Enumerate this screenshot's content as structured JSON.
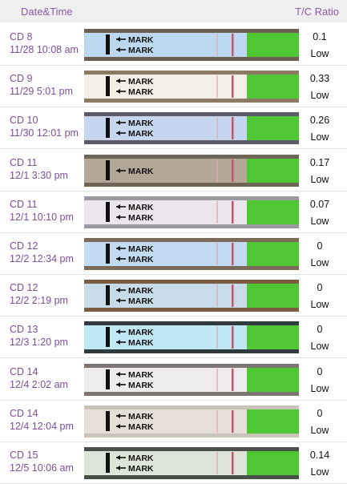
{
  "header": {
    "date_label": "Date&Time",
    "ratio_label": "T/C Ratio"
  },
  "rows": [
    {
      "cd": "CD 8",
      "datetime": "11/28 10:08 am",
      "strip_labels": [
        "MARK",
        "MARK"
      ],
      "ratio": "0.1",
      "level": "Low"
    },
    {
      "cd": "CD 9",
      "datetime": "11/29 5:01 pm",
      "strip_labels": [
        "MARK",
        "MARK"
      ],
      "ratio": "0.33",
      "level": "Low"
    },
    {
      "cd": "CD 10",
      "datetime": "11/30 12:01 pm",
      "strip_labels": [
        "MARK",
        "MARK"
      ],
      "ratio": "0.26",
      "level": "Low"
    },
    {
      "cd": "CD 11",
      "datetime": "12/1 3:30 pm",
      "strip_labels": [
        "MARK"
      ],
      "ratio": "0.17",
      "level": "Low"
    },
    {
      "cd": "CD 11",
      "datetime": "12/1 10:10 pm",
      "strip_labels": [
        "MARK",
        "MARK"
      ],
      "ratio": "0.07",
      "level": "Low"
    },
    {
      "cd": "CD 12",
      "datetime": "12/2 12:34 pm",
      "strip_labels": [
        "MARK",
        "MARK"
      ],
      "ratio": "0",
      "level": "Low"
    },
    {
      "cd": "CD 12",
      "datetime": "12/2 2:19 pm",
      "strip_labels": [
        "MARK",
        "MARK"
      ],
      "ratio": "0",
      "level": "Low"
    },
    {
      "cd": "CD 13",
      "datetime": "12/3 1:20 pm",
      "strip_labels": [
        "MARK",
        "MARK"
      ],
      "ratio": "0",
      "level": "Low"
    },
    {
      "cd": "CD 14",
      "datetime": "12/4 2:02 am",
      "strip_labels": [
        "MARK",
        "MARK"
      ],
      "ratio": "0",
      "level": "Low"
    },
    {
      "cd": "CD 14",
      "datetime": "12/4 12:04 pm",
      "strip_labels": [
        "MARK",
        "MARK"
      ],
      "ratio": "0",
      "level": "Low"
    },
    {
      "cd": "CD 15",
      "datetime": "12/5 10:06 am",
      "strip_labels": [
        "MARK",
        "MARK"
      ],
      "ratio": "0.14",
      "level": "Low"
    }
  ]
}
